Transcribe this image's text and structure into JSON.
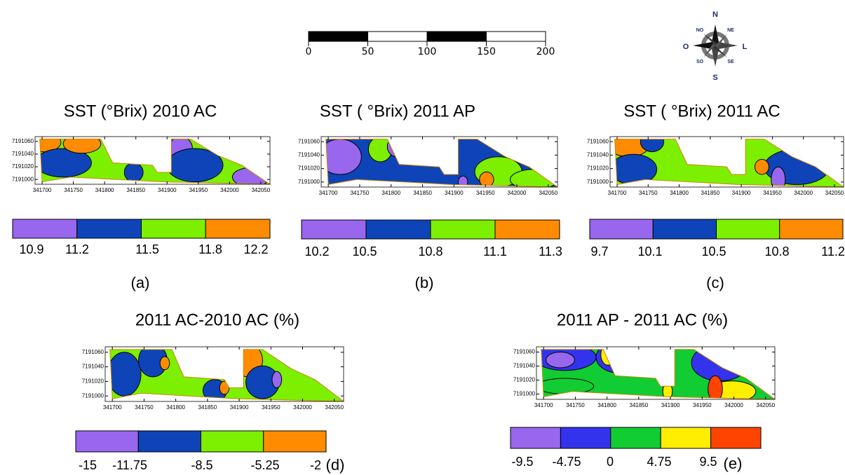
{
  "scale_bar": {
    "labels": [
      "0",
      "50",
      "100",
      "150",
      "200"
    ]
  },
  "compass": {
    "north": "N",
    "south": "S",
    "east": "L",
    "west": "O",
    "northeast": "NE",
    "northwest": "NO",
    "southeast": "SE",
    "southwest": "SO"
  },
  "panels": [
    {
      "title": "SST (°Brix) 2010 AC",
      "letter": "(a)",
      "x_ticks": [
        "341700",
        "341750",
        "341800",
        "341850",
        "341900",
        "341950",
        "342000",
        "342050"
      ],
      "y_ticks": [
        "7191060",
        "7191040",
        "7191020",
        "7191000"
      ],
      "legend": {
        "colors": [
          "#9966ee",
          "#0e44b8",
          "#7cf000",
          "#ff8c00"
        ],
        "labels": [
          "10.9",
          "11.2",
          "11.5",
          "11.8",
          "12.2"
        ]
      }
    },
    {
      "title": "SST ( °Brix) 2011 AP",
      "letter": "(b)",
      "x_ticks": [
        "341700",
        "341750",
        "341800",
        "341850",
        "341900",
        "341950",
        "342000",
        "342050"
      ],
      "y_ticks": [
        "7191060",
        "7191040",
        "7191020",
        "7191000"
      ],
      "legend": {
        "colors": [
          "#9966ee",
          "#0e44b8",
          "#7cf000",
          "#ff8c00"
        ],
        "labels": [
          "10.2",
          "10.5",
          "10.8",
          "11.1",
          "11.3"
        ]
      }
    },
    {
      "title": "SST ( °Brix) 2011 AC",
      "letter": "(c)",
      "x_ticks": [
        "341700",
        "341750",
        "341800",
        "341850",
        "341900",
        "341950",
        "342000",
        "342050"
      ],
      "y_ticks": [
        "7191060",
        "7191040",
        "7191020",
        "7191000"
      ],
      "legend": {
        "colors": [
          "#9966ee",
          "#0e44b8",
          "#7cf000",
          "#ff8c00"
        ],
        "labels": [
          "9.7",
          "10.1",
          "10.5",
          "10.8",
          "11.2"
        ]
      }
    },
    {
      "title": "2011 AC-2010 AC (%)",
      "letter": "(d)",
      "x_ticks": [
        "341700",
        "341750",
        "341800",
        "341850",
        "341900",
        "341950",
        "342000",
        "342050"
      ],
      "y_ticks": [
        "7191060",
        "7191040",
        "7191020",
        "7191000"
      ],
      "legend": {
        "colors": [
          "#9966ee",
          "#0e44b8",
          "#7cf000",
          "#ff8c00"
        ],
        "labels": [
          "-15",
          "-11.75",
          "-8.5",
          "-5.25",
          "-2"
        ]
      }
    },
    {
      "title": "2011 AP - 2011 AC (%)",
      "letter": "(e)",
      "x_ticks": [
        "341700",
        "341750",
        "341800",
        "341850",
        "341900",
        "341950",
        "342000",
        "342050"
      ],
      "y_ticks": [
        "7191060",
        "7191040",
        "7191020",
        "7191000"
      ],
      "legend": {
        "colors": [
          "#9966ee",
          "#3333ee",
          "#11cc33",
          "#ffee00",
          "#ff4400"
        ],
        "labels": [
          "-9.5",
          "-4.75",
          "0",
          "4.75",
          "9.5"
        ]
      }
    }
  ]
}
